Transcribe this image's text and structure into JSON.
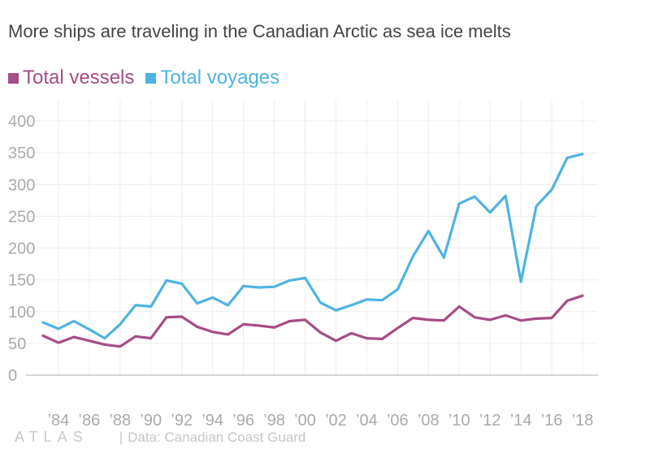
{
  "colors": {
    "vessels": "#a44d86",
    "voyages": "#4eb3e2",
    "grid": "#ececec",
    "axis": "#bbbbbb",
    "tick": "#aaaaaa"
  },
  "footer": {
    "logo": "ATLAS",
    "separator": "|",
    "source": "Data: Canadian Coast Guard"
  },
  "chart_data": {
    "type": "line",
    "title": "More ships are traveling in the Canadian Arctic as sea ice melts",
    "xlabel": "",
    "ylabel": "",
    "ylim": [
      0,
      400
    ],
    "yticks": [
      0,
      50,
      100,
      150,
      200,
      250,
      300,
      350,
      400
    ],
    "xlim": [
      1982,
      2019
    ],
    "xticks": [
      {
        "year": 1984,
        "label": "’84"
      },
      {
        "year": 1986,
        "label": "’86"
      },
      {
        "year": 1988,
        "label": "’88"
      },
      {
        "year": 1990,
        "label": "’90"
      },
      {
        "year": 1992,
        "label": "’92"
      },
      {
        "year": 1994,
        "label": "’94"
      },
      {
        "year": 1996,
        "label": "’96"
      },
      {
        "year": 1998,
        "label": "’98"
      },
      {
        "year": 2000,
        "label": "’00"
      },
      {
        "year": 2002,
        "label": "’02"
      },
      {
        "year": 2004,
        "label": "’04"
      },
      {
        "year": 2006,
        "label": "’06"
      },
      {
        "year": 2008,
        "label": "’08"
      },
      {
        "year": 2010,
        "label": "’10"
      },
      {
        "year": 2012,
        "label": "’12"
      },
      {
        "year": 2014,
        "label": "’14"
      },
      {
        "year": 2016,
        "label": "’16"
      },
      {
        "year": 2018,
        "label": "’18"
      }
    ],
    "grid": true,
    "legend_position": "top-left",
    "x": [
      1983,
      1984,
      1985,
      1986,
      1987,
      1988,
      1989,
      1990,
      1991,
      1992,
      1993,
      1994,
      1995,
      1996,
      1997,
      1998,
      1999,
      2000,
      2001,
      2002,
      2003,
      2004,
      2005,
      2006,
      2007,
      2008,
      2009,
      2010,
      2011,
      2012,
      2013,
      2014,
      2015,
      2016,
      2017,
      2018
    ],
    "series": [
      {
        "name": "Total vessels",
        "color_key": "vessels",
        "values": [
          62,
          51,
          60,
          54,
          48,
          45,
          61,
          58,
          91,
          92,
          76,
          68,
          64,
          80,
          78,
          75,
          85,
          87,
          67,
          54,
          66,
          58,
          57,
          74,
          90,
          87,
          86,
          108,
          91,
          87,
          94,
          86,
          89,
          90,
          117,
          125
        ]
      },
      {
        "name": "Total voyages",
        "color_key": "voyages",
        "values": [
          83,
          73,
          85,
          72,
          58,
          80,
          110,
          108,
          149,
          144,
          113,
          122,
          110,
          140,
          138,
          139,
          149,
          153,
          114,
          102,
          110,
          119,
          118,
          135,
          187,
          227,
          185,
          270,
          281,
          256,
          282,
          147,
          266,
          292,
          342,
          348
        ]
      }
    ]
  }
}
